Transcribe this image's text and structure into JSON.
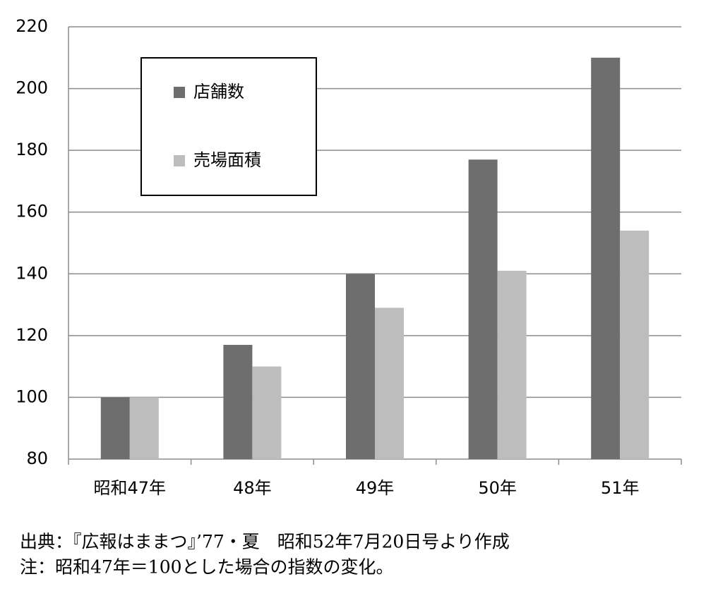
{
  "chart_data": {
    "type": "bar",
    "categories": [
      "昭和47年",
      "48年",
      "49年",
      "50年",
      "51年"
    ],
    "series": [
      {
        "name": "店舗数",
        "color": "#6e6e6e",
        "values": [
          100,
          117,
          140,
          177,
          210
        ]
      },
      {
        "name": "売場面積",
        "color": "#bdbdbd",
        "values": [
          100,
          110,
          129,
          141,
          154
        ]
      }
    ],
    "ylim": [
      80,
      220
    ],
    "yticks": [
      80,
      100,
      120,
      140,
      160,
      180,
      200,
      220
    ],
    "grid": true,
    "notes": [
      "出典：『広報はままつ』’77・夏　昭和52年7月20日号より作成",
      "注：昭和47年＝100とした場合の指数の変化。"
    ]
  }
}
